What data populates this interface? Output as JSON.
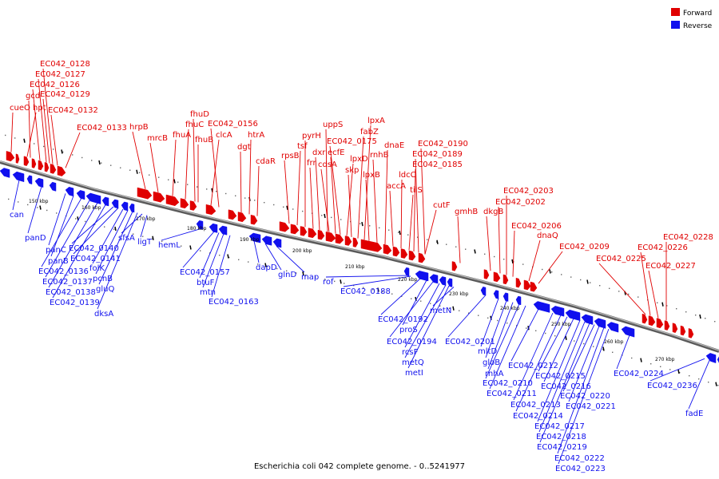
{
  "caption": "Escherichia coli 042 complete genome. - 0..5241977",
  "legend": [
    {
      "label": "Forward",
      "color": "#e00000"
    },
    {
      "label": "Reverse",
      "color": "#1010ee"
    }
  ],
  "colors": {
    "forward": "#e00000",
    "reverse": "#1010ee",
    "backbone": "#8a8a8a"
  },
  "kbp_ticks": [
    "150 kbp",
    "160 kbp",
    "170 kbp",
    "180 kbp",
    "190 kbp",
    "200 kbp",
    "210 kbp",
    "220 kbp",
    "230 kbp",
    "240 kbp",
    "250 kbp",
    "260 kbp",
    "270 kbp"
  ],
  "forward_labels": [
    "cueO",
    "hpt",
    "EC042_0126",
    "EC042_0127",
    "EC042_0128",
    "EC042_0129",
    "EC042_0132",
    "gcd",
    "EC042_0133",
    "hrpB",
    "mrcB",
    "fhuA",
    "fhuC",
    "fhuD",
    "fhuB",
    "clcA",
    "EC042_0156",
    "dgt",
    "htrA",
    "cdaR",
    "rpsB",
    "tsf",
    "pyrH",
    "frr",
    "dxr",
    "uppS",
    "cdsA",
    "ecfE",
    "EC042_0175",
    "lpxD",
    "skp",
    "fabZ",
    "lpxA",
    "lpxB",
    "rnhB",
    "dnaE",
    "accA",
    "ldcC",
    "tilS",
    "EC042_0185",
    "EC042_0189",
    "EC042_0190",
    "cutF",
    "gmhB",
    "dkgB",
    "EC042_0202",
    "EC042_0203",
    "EC042_0206",
    "dnaQ",
    "EC042_0209",
    "EC042_0225",
    "EC042_0226",
    "EC042_0227",
    "EC042_0228"
  ],
  "reverse_labels": [
    "can",
    "panD",
    "panC",
    "panB",
    "EC042_0136",
    "EC042_0137",
    "EC042_0138",
    "EC042_0139",
    "EC042_0140",
    "EC042_0141",
    "folK",
    "pcnB",
    "gluQ",
    "dksA",
    "sfsA",
    "ligT",
    "hemL",
    "EC042_0157",
    "btuF",
    "mtn",
    "EC042_0163",
    "dapD",
    "glnD",
    "map",
    "rof",
    "EC042_0188",
    "EC042_0192",
    "proS",
    "EC042_0194",
    "rcsF",
    "metQ",
    "metI",
    "metN",
    "EC042_0201",
    "mltD",
    "gloB",
    "rnhA",
    "EC042_0210",
    "EC042_0211",
    "EC042_0212",
    "EC042_0213",
    "EC042_0214",
    "EC042_0215",
    "EC042_0216",
    "EC042_0217",
    "EC042_0218",
    "EC042_0219",
    "EC042_0220",
    "EC042_0221",
    "EC042_0222",
    "EC042_0223",
    "EC042_0224",
    "EC042_0236",
    "fadE"
  ]
}
